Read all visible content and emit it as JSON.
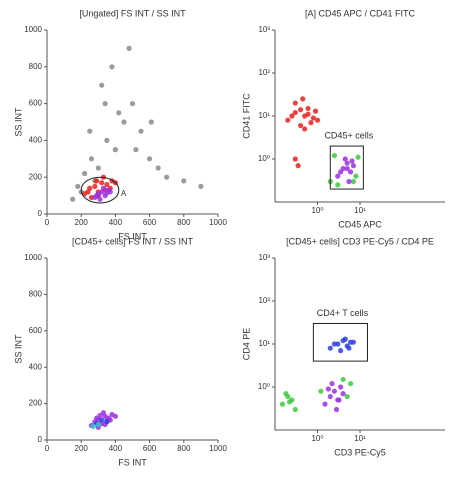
{
  "chart_data": [
    {
      "type": "scatter",
      "title": "[Ungated] FS INT / SS INT",
      "x_label": "FS INT",
      "y_label": "SS INT",
      "xscale": "linear",
      "yscale": "linear",
      "xlim": [
        0,
        1000
      ],
      "ylim": [
        0,
        1000
      ],
      "xticks": [
        0,
        200,
        400,
        600,
        800,
        1000
      ],
      "yticks": [
        0,
        200,
        400,
        600,
        800,
        1000
      ],
      "series": [
        {
          "color": "#8a8a8a",
          "x": [
            150,
            180,
            220,
            260,
            300,
            350,
            400,
            450,
            500,
            550,
            600,
            650,
            700,
            800,
            900,
            250,
            320,
            380,
            420,
            480,
            200,
            280,
            340,
            520,
            610
          ],
          "y": [
            80,
            150,
            220,
            300,
            250,
            400,
            350,
            500,
            600,
            450,
            300,
            250,
            200,
            180,
            150,
            450,
            700,
            800,
            550,
            900,
            120,
            180,
            600,
            350,
            500
          ]
        },
        {
          "color": "#e8231f",
          "x": [
            220,
            250,
            280,
            300,
            320,
            350,
            380,
            260,
            300,
            340,
            370,
            400,
            240,
            290,
            330
          ],
          "y": [
            110,
            140,
            150,
            120,
            170,
            160,
            180,
            90,
            100,
            130,
            140,
            170,
            120,
            180,
            200
          ]
        },
        {
          "color": "#9b30e0",
          "x": [
            280,
            300,
            320,
            340,
            360,
            310,
            330,
            350,
            290,
            370
          ],
          "y": [
            90,
            110,
            120,
            100,
            130,
            80,
            140,
            115,
            100,
            120
          ]
        }
      ],
      "gate": {
        "label": "A",
        "shape": "ellipse",
        "x": [
          200,
          420
        ],
        "y": [
          60,
          200
        ]
      }
    },
    {
      "type": "scatter",
      "title": "[A] CD45 APC / CD41 FITC",
      "x_label": "CD45 APC",
      "y_label": "CD41 FITC",
      "xscale": "log",
      "yscale": "log",
      "xlim": [
        0.1,
        1000
      ],
      "ylim": [
        0.1,
        1000
      ],
      "xticks": [
        {
          "value": 1,
          "label": "10⁰"
        },
        {
          "value": 10,
          "label": "10¹"
        }
      ],
      "yticks": [
        {
          "value": 1,
          "label": "10⁰"
        },
        {
          "value": 10,
          "label": "10¹"
        },
        {
          "value": 100,
          "label": "10²"
        },
        {
          "value": 1000,
          "label": "10³"
        }
      ],
      "series": [
        {
          "color": "#e8231f",
          "x": [
            0.2,
            0.3,
            0.4,
            0.5,
            0.6,
            0.8,
            0.3,
            0.5,
            0.7,
            0.4,
            0.6,
            1,
            0.25,
            0.45,
            0.9,
            0.3,
            0.35
          ],
          "y": [
            8,
            12,
            6,
            10,
            15,
            9,
            20,
            5,
            7,
            14,
            11,
            8,
            10,
            25,
            13,
            1,
            0.7
          ]
        },
        {
          "color": "#3ec93e",
          "x": [
            2,
            2.5,
            8,
            9,
            3,
            7
          ],
          "y": [
            0.3,
            1.2,
            0.4,
            1.1,
            0.25,
            0.3
          ]
        },
        {
          "color": "#9b30e0",
          "x": [
            3,
            4,
            5,
            6,
            7,
            4.5,
            5.5,
            6.5,
            3.5,
            5
          ],
          "y": [
            0.4,
            0.6,
            0.8,
            0.5,
            0.7,
            1,
            0.3,
            0.9,
            0.5,
            0.6
          ]
        }
      ],
      "gate": {
        "label": "CD45+ cells",
        "shape": "rect",
        "x": [
          2,
          12
        ],
        "y": [
          0.2,
          2
        ]
      }
    },
    {
      "type": "scatter",
      "title": "[CD45+ cells] FS INT / SS INT",
      "x_label": "FS INT",
      "y_label": "SS INT",
      "xscale": "linear",
      "yscale": "linear",
      "xlim": [
        0,
        1000
      ],
      "ylim": [
        0,
        1000
      ],
      "xticks": [
        0,
        200,
        400,
        600,
        800,
        1000
      ],
      "yticks": [
        0,
        200,
        400,
        600,
        800,
        1000
      ],
      "series": [
        {
          "color": "#9b30e0",
          "x": [
            260,
            280,
            300,
            320,
            340,
            360,
            380,
            300,
            330,
            350,
            290,
            370,
            310,
            340,
            400
          ],
          "y": [
            80,
            100,
            110,
            90,
            130,
            120,
            140,
            70,
            150,
            105,
            120,
            110,
            135,
            85,
            130
          ]
        },
        {
          "color": "#2e3fe0",
          "x": [
            290,
            320,
            350
          ],
          "y": [
            90,
            110,
            100
          ]
        },
        {
          "color": "#2ec4c4",
          "x": [
            270,
            300
          ],
          "y": [
            75,
            85
          ]
        }
      ]
    },
    {
      "type": "scatter",
      "title": "[CD45+ cells] CD3 PE-Cy5 / CD4 PE",
      "x_label": "CD3 PE-Cy5",
      "y_label": "CD4 PE",
      "xscale": "log",
      "yscale": "log",
      "xlim": [
        0.1,
        1000
      ],
      "ylim": [
        0.1,
        1000
      ],
      "xticks": [
        {
          "value": 1,
          "label": "10⁰"
        },
        {
          "value": 10,
          "label": "10¹"
        }
      ],
      "yticks": [
        {
          "value": 1,
          "label": "10⁰"
        },
        {
          "value": 10,
          "label": "10¹"
        },
        {
          "value": 100,
          "label": "10²"
        },
        {
          "value": 1000,
          "label": "10³"
        }
      ],
      "series": [
        {
          "color": "#3ec93e",
          "x": [
            0.15,
            0.2,
            0.25,
            0.3,
            0.18,
            0.22,
            4,
            5,
            1.2,
            6
          ],
          "y": [
            0.4,
            0.6,
            0.5,
            0.3,
            0.7,
            0.45,
            1.5,
            0.6,
            0.8,
            1.2
          ]
        },
        {
          "color": "#9b30e0",
          "x": [
            1.5,
            2,
            2.5,
            3,
            3.5,
            2.2,
            2.8,
            4,
            1.8,
            3.2
          ],
          "y": [
            0.4,
            0.6,
            0.8,
            0.5,
            1,
            1.2,
            0.3,
            0.7,
            0.9,
            0.5
          ]
        },
        {
          "color": "#2e3fe0",
          "x": [
            2,
            3,
            4,
            5,
            6,
            3.5,
            4.5,
            2.5,
            5.5,
            7
          ],
          "y": [
            8,
            10,
            12,
            9,
            11,
            7,
            13,
            10,
            8,
            11
          ]
        }
      ],
      "gate": {
        "label": "CD4+ T cells",
        "shape": "rect",
        "x": [
          0.8,
          15
        ],
        "y": [
          4,
          30
        ]
      }
    }
  ]
}
